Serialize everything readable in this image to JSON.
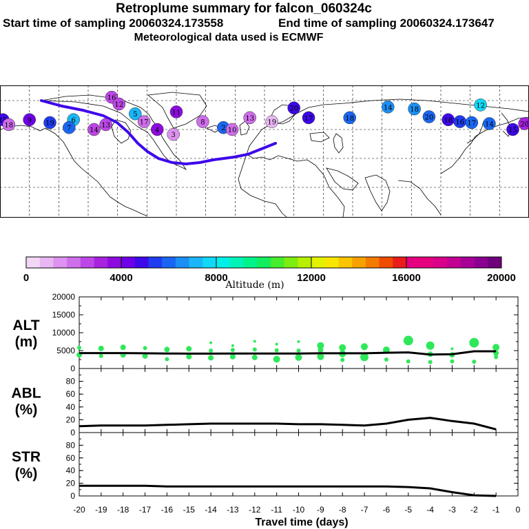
{
  "header": {
    "title": "Retroplume summary for falcon_060324c",
    "start": "Start time of sampling 20060324.173558",
    "end": "End time of sampling 20060324.173647",
    "met": "Meteorological data used is ECMWF"
  },
  "colorbar": {
    "label": "Altitude (m)",
    "ticks": [
      "0",
      "4000",
      "8000",
      "12000",
      "16000",
      "20000"
    ],
    "colors": [
      "#f2d8f6",
      "#e8b6f3",
      "#dd92ef",
      "#cf6eeb",
      "#bd47e6",
      "#a822e0",
      "#8e0be0",
      "#6d00e6",
      "#3d08ea",
      "#1f3cf0",
      "#1a66f2",
      "#1b8ff5",
      "#1bb6f7",
      "#10d8f6",
      "#00f0e8",
      "#00f4b8",
      "#00f28a",
      "#12ee5d",
      "#46ec2e",
      "#7dec10",
      "#b6ef00",
      "#e3f200",
      "#f7e700",
      "#f9c600",
      "#f7a100",
      "#f47a00",
      "#f04a00",
      "#ea1c1c",
      "#e40080",
      "#e6007e",
      "#d8008a",
      "#c20091",
      "#a80096",
      "#8a0090",
      "#6e0079"
    ]
  },
  "chart_data": [
    {
      "type": "scatter",
      "title": "ALT (m)",
      "ylabel": "ALT\n(m)",
      "xlabel": "Travel time (days)",
      "xlim": [
        -20,
        0
      ],
      "ylim": [
        0,
        20000
      ],
      "yticks": [
        "20000",
        "15000",
        "10000",
        "5000",
        "0"
      ],
      "xticks": [
        "-20",
        "-19",
        "-18",
        "-17",
        "-16",
        "-15",
        "-14",
        "-13",
        "-12",
        "-11",
        "-10",
        "-9",
        "-8",
        "-7",
        "-6",
        "-5",
        "-4",
        "-3",
        "-2",
        "-1",
        "0"
      ],
      "line": {
        "x": [
          -20,
          -19,
          -18,
          -17,
          -16,
          -15,
          -14,
          -13,
          -12,
          -11,
          -10,
          -9,
          -8,
          -7,
          -6,
          -5,
          -4,
          -3,
          -2,
          -1
        ],
        "y": [
          4300,
          4300,
          4300,
          4250,
          4200,
          4150,
          4150,
          4200,
          4200,
          4200,
          4200,
          4250,
          4250,
          4250,
          4400,
          4500,
          3900,
          4000,
          4800,
          4800
        ]
      },
      "points": {
        "x": [
          -20,
          -20,
          -19,
          -19,
          -18,
          -18,
          -17,
          -17,
          -16,
          -16,
          -15,
          -15,
          -14,
          -14,
          -14,
          -13,
          -13,
          -13,
          -12,
          -12,
          -12,
          -11,
          -11,
          -11,
          -10,
          -10,
          -10,
          -9,
          -9,
          -9,
          -8,
          -8,
          -8,
          -7,
          -7,
          -6,
          -6,
          -5,
          -5,
          -4,
          -4,
          -4,
          -3,
          -3,
          -3,
          -2,
          -2,
          -1,
          -1,
          -1
        ],
        "y": [
          5800,
          3800,
          5600,
          3500,
          5900,
          3800,
          5700,
          3500,
          5300,
          2600,
          5500,
          3300,
          7200,
          5000,
          3000,
          6400,
          5200,
          3300,
          7600,
          5300,
          3100,
          6800,
          5100,
          2600,
          7500,
          5000,
          3100,
          6400,
          5200,
          3300,
          5800,
          4100,
          2400,
          6100,
          3200,
          5200,
          2500,
          7800,
          2000,
          6400,
          4000,
          1800,
          5500,
          3800,
          2000,
          7200,
          1900,
          5900,
          4300,
          3200
        ],
        "r": [
          3,
          4,
          4,
          3,
          4,
          4,
          3,
          4,
          4,
          3,
          4,
          4,
          2,
          3,
          4,
          2,
          3,
          4,
          2,
          3,
          4,
          2,
          3,
          5,
          2,
          3,
          5,
          5,
          4,
          5,
          5,
          5,
          3,
          5,
          6,
          5,
          3,
          7,
          3,
          6,
          4,
          3,
          2,
          4,
          3,
          7,
          3,
          5,
          4,
          3
        ]
      }
    },
    {
      "type": "line",
      "ylabel": "ABL\n(%)",
      "xlim": [
        -20,
        0
      ],
      "ylim": [
        0,
        100
      ],
      "yticks": [
        "80",
        "60",
        "40",
        "20",
        "0"
      ],
      "x": [
        -20,
        -19,
        -18,
        -17,
        -16,
        -15,
        -14,
        -13,
        -12,
        -11,
        -10,
        -9,
        -8,
        -7,
        -6,
        -5,
        -4,
        -3,
        -2,
        -1
      ],
      "y": [
        10,
        11,
        11,
        11,
        12,
        13,
        14,
        14,
        14,
        14,
        13,
        13,
        12,
        11,
        14,
        20,
        23,
        18,
        14,
        5
      ]
    },
    {
      "type": "line",
      "ylabel": "STR\n(%)",
      "xlim": [
        -20,
        0
      ],
      "ylim": [
        0,
        100
      ],
      "yticks": [
        "80",
        "60",
        "40",
        "20",
        "0"
      ],
      "x": [
        -20,
        -19,
        -18,
        -17,
        -16,
        -15,
        -14,
        -13,
        -12,
        -11,
        -10,
        -9,
        -8,
        -7,
        -6,
        -5,
        -4,
        -3,
        -2,
        -1
      ],
      "y": [
        16,
        16,
        16,
        16,
        15,
        15,
        15,
        15,
        15,
        15,
        15,
        15,
        15,
        15,
        15,
        14,
        12,
        6,
        1,
        0
      ]
    }
  ],
  "map": {
    "markers": [
      {
        "label": "15",
        "lon": -178,
        "lat": 50,
        "alt": 4800
      },
      {
        "label": "18",
        "lon": -174,
        "lat": 45,
        "alt": 1800
      },
      {
        "label": "9",
        "lon": -160,
        "lat": 50,
        "alt": 4200
      },
      {
        "label": "19",
        "lon": -146,
        "lat": 47,
        "alt": 5500
      },
      {
        "label": "6",
        "lon": -130,
        "lat": 50,
        "alt": 7000
      },
      {
        "label": "7",
        "lon": -133,
        "lat": 42,
        "alt": 6200
      },
      {
        "label": "14",
        "lon": -116,
        "lat": 40,
        "alt": 2600
      },
      {
        "label": "13",
        "lon": -108,
        "lat": 45,
        "alt": 2500
      },
      {
        "label": "16",
        "lon": -104,
        "lat": 73,
        "alt": 2400
      },
      {
        "label": "12",
        "lon": -99,
        "lat": 66,
        "alt": 2600
      },
      {
        "label": "5",
        "lon": -88,
        "lat": 56,
        "alt": 7200
      },
      {
        "label": "17",
        "lon": -82,
        "lat": 48,
        "alt": 2000
      },
      {
        "label": "4",
        "lon": -73,
        "lat": 40,
        "alt": 3500
      },
      {
        "label": "11",
        "lon": -60,
        "lat": 58,
        "alt": 3500
      },
      {
        "label": "3",
        "lon": -62,
        "lat": 35,
        "alt": 1500
      },
      {
        "label": "8",
        "lon": -42,
        "lat": 48,
        "alt": 2000
      },
      {
        "label": "2",
        "lon": -28,
        "lat": 42,
        "alt": 6200
      },
      {
        "label": "10",
        "lon": -22,
        "lat": 40,
        "alt": 1800
      },
      {
        "label": "13",
        "lon": -10,
        "lat": 52,
        "alt": 2200
      },
      {
        "label": "19",
        "lon": 5,
        "lat": 48,
        "alt": 800
      },
      {
        "label": "20",
        "lon": 20,
        "lat": 62,
        "alt": 5000
      },
      {
        "label": "17",
        "lon": 30,
        "lat": 52,
        "alt": 4800
      },
      {
        "label": "18",
        "lon": 58,
        "lat": 52,
        "alt": 5800
      },
      {
        "label": "14",
        "lon": 84,
        "lat": 63,
        "alt": 6500
      },
      {
        "label": "18",
        "lon": 102,
        "lat": 61,
        "alt": 6600
      },
      {
        "label": "20",
        "lon": 112,
        "lat": 53,
        "alt": 6000
      },
      {
        "label": "18",
        "lon": 125,
        "lat": 50,
        "alt": 5000
      },
      {
        "label": "16",
        "lon": 133,
        "lat": 48,
        "alt": 5300
      },
      {
        "label": "17",
        "lon": 141,
        "lat": 47,
        "alt": 5800
      },
      {
        "label": "14",
        "lon": 153,
        "lat": 46,
        "alt": 6000
      },
      {
        "label": "12",
        "lon": 147,
        "lat": 65,
        "alt": 7500
      },
      {
        "label": "15",
        "lon": 169,
        "lat": 40,
        "alt": 4800
      },
      {
        "label": "20",
        "lon": 177,
        "lat": 46,
        "alt": 3400
      },
      {
        "label": "14",
        "lon": 183,
        "lat": 46,
        "alt": 4500
      }
    ]
  }
}
